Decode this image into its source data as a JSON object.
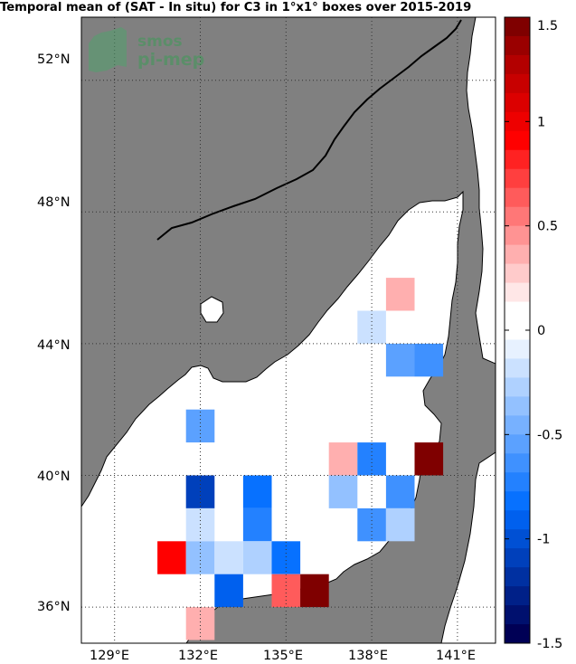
{
  "title": "Temporal mean of (SAT - In situ) for C3 in 1°x1° boxes over 2015-2019",
  "logo": {
    "line1": "smos",
    "line2": "pi-mep"
  },
  "lat_labels": [
    "52°N",
    "48°N",
    "44°N",
    "40°N",
    "36°N"
  ],
  "lon_labels": [
    "129°E",
    "132°E",
    "135°E",
    "138°E",
    "141°E"
  ],
  "colorbar": {
    "min": -1.5,
    "max": 1.5,
    "tick_labels": [
      "1.5",
      "1",
      "0.5",
      "0",
      "-0.5",
      "-1",
      "-1.5"
    ],
    "colors_top_to_bottom": [
      "#7f0000",
      "#9a0000",
      "#b30000",
      "#c80000",
      "#dc0000",
      "#ee0000",
      "#ff0000",
      "#ff2222",
      "#ff3f3f",
      "#ff5b5b",
      "#ff7777",
      "#ff9393",
      "#ffafaf",
      "#ffcbcb",
      "#ffe7e7",
      "#ffffff",
      "#ffffff",
      "#e7f1ff",
      "#cbe1ff",
      "#afd1ff",
      "#93c1ff",
      "#77b1ff",
      "#5ba1ff",
      "#3f91ff",
      "#2381ff",
      "#0771ff",
      "#0060ee",
      "#0050d4",
      "#0040bb",
      "#0030a1",
      "#002088",
      "#00106e",
      "#000055"
    ]
  },
  "colors": {
    "land": "#808080",
    "ocean": "#ffffff",
    "coast": "#000000",
    "grid": "#333333"
  },
  "chart_data": {
    "type": "heatmap",
    "title": "Temporal mean of (SAT - In situ) for C3 in 1°x1° boxes over 2015-2019",
    "xlabel": "",
    "ylabel": "",
    "xlim": [
      127.5,
      142.5
    ],
    "ylim": [
      35,
      53
    ],
    "vmin": -1.5,
    "vmax": 1.5,
    "cells": [
      {
        "lon": 139.0,
        "lat": 45.5,
        "value": 0.35
      },
      {
        "lon": 138.0,
        "lat": 44.5,
        "value": -0.15
      },
      {
        "lon": 139.0,
        "lat": 43.5,
        "value": -0.55
      },
      {
        "lon": 140.0,
        "lat": 43.5,
        "value": -0.6
      },
      {
        "lon": 132.0,
        "lat": 41.5,
        "value": -0.55
      },
      {
        "lon": 137.0,
        "lat": 40.5,
        "value": 0.35
      },
      {
        "lon": 138.0,
        "lat": 40.5,
        "value": -0.75
      },
      {
        "lon": 140.0,
        "lat": 40.5,
        "value": 1.5
      },
      {
        "lon": 132.0,
        "lat": 39.5,
        "value": -1.1
      },
      {
        "lon": 134.0,
        "lat": 39.5,
        "value": -0.85
      },
      {
        "lon": 137.0,
        "lat": 39.5,
        "value": -0.35
      },
      {
        "lon": 139.0,
        "lat": 39.5,
        "value": -0.65
      },
      {
        "lon": 132.0,
        "lat": 38.5,
        "value": -0.15
      },
      {
        "lon": 134.0,
        "lat": 38.5,
        "value": -0.7
      },
      {
        "lon": 138.0,
        "lat": 38.5,
        "value": -0.6
      },
      {
        "lon": 139.0,
        "lat": 38.5,
        "value": -0.3
      },
      {
        "lon": 131.0,
        "lat": 37.5,
        "value": 0.95
      },
      {
        "lon": 132.0,
        "lat": 37.5,
        "value": -0.4
      },
      {
        "lon": 133.0,
        "lat": 37.5,
        "value": -0.2
      },
      {
        "lon": 134.0,
        "lat": 37.5,
        "value": -0.3
      },
      {
        "lon": 135.0,
        "lat": 37.5,
        "value": -0.85
      },
      {
        "lon": 133.0,
        "lat": 36.5,
        "value": -0.9
      },
      {
        "lon": 135.0,
        "lat": 36.5,
        "value": 0.6
      },
      {
        "lon": 136.0,
        "lat": 36.5,
        "value": 1.5
      },
      {
        "lon": 132.0,
        "lat": 35.5,
        "value": 0.35
      }
    ]
  }
}
